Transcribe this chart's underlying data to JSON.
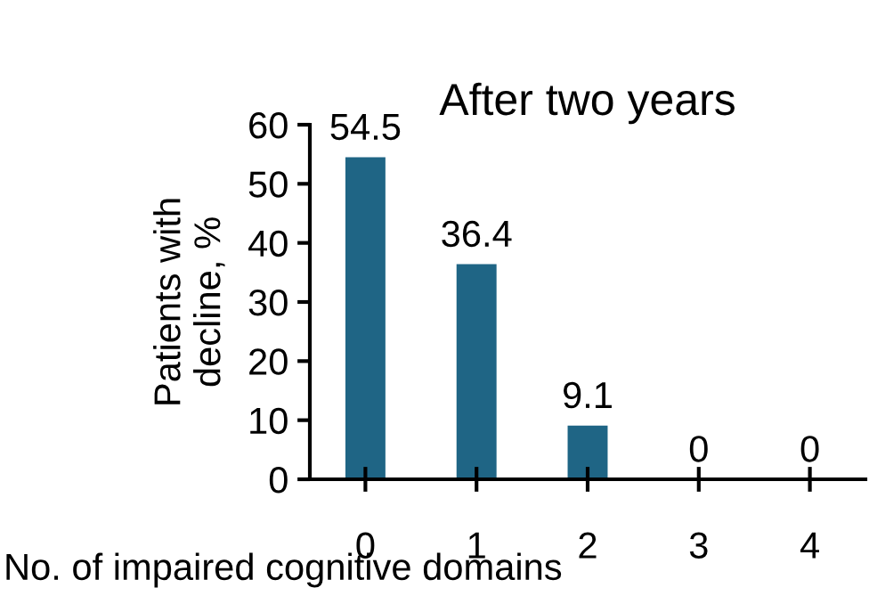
{
  "chart_data": {
    "type": "bar",
    "title": "After two years",
    "xlabel": "No. of impaired cognitive domains",
    "ylabel": "Patients with\ndecline, %",
    "categories": [
      "0",
      "1",
      "2",
      "3",
      "4"
    ],
    "values": [
      54.5,
      36.4,
      9.1,
      0,
      0
    ],
    "color": "#1f6585",
    "ylim": [
      0,
      60
    ],
    "yticks": [
      0,
      10,
      20,
      30,
      40,
      50,
      60
    ],
    "grid": false,
    "data_labels": true
  }
}
